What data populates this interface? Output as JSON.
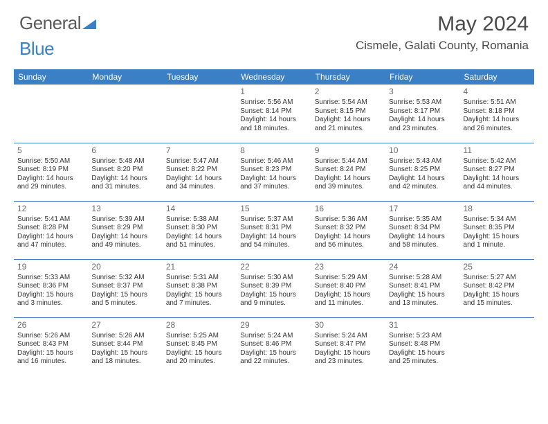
{
  "brand": {
    "part1": "General",
    "part2": "Blue"
  },
  "title": "May 2024",
  "location": "Cismele, Galati County, Romania",
  "colors": {
    "accent": "#3b7fc4",
    "text": "#4a4a4a",
    "cell_text": "#333333",
    "bg": "#ffffff"
  },
  "weekdays": [
    "Sunday",
    "Monday",
    "Tuesday",
    "Wednesday",
    "Thursday",
    "Friday",
    "Saturday"
  ],
  "layout": {
    "first_weekday_index": 3,
    "days_in_month": 31
  },
  "days": [
    {
      "n": 1,
      "sunrise": "5:56 AM",
      "sunset": "8:14 PM",
      "daylight": "14 hours and 18 minutes."
    },
    {
      "n": 2,
      "sunrise": "5:54 AM",
      "sunset": "8:15 PM",
      "daylight": "14 hours and 21 minutes."
    },
    {
      "n": 3,
      "sunrise": "5:53 AM",
      "sunset": "8:17 PM",
      "daylight": "14 hours and 23 minutes."
    },
    {
      "n": 4,
      "sunrise": "5:51 AM",
      "sunset": "8:18 PM",
      "daylight": "14 hours and 26 minutes."
    },
    {
      "n": 5,
      "sunrise": "5:50 AM",
      "sunset": "8:19 PM",
      "daylight": "14 hours and 29 minutes."
    },
    {
      "n": 6,
      "sunrise": "5:48 AM",
      "sunset": "8:20 PM",
      "daylight": "14 hours and 31 minutes."
    },
    {
      "n": 7,
      "sunrise": "5:47 AM",
      "sunset": "8:22 PM",
      "daylight": "14 hours and 34 minutes."
    },
    {
      "n": 8,
      "sunrise": "5:46 AM",
      "sunset": "8:23 PM",
      "daylight": "14 hours and 37 minutes."
    },
    {
      "n": 9,
      "sunrise": "5:44 AM",
      "sunset": "8:24 PM",
      "daylight": "14 hours and 39 minutes."
    },
    {
      "n": 10,
      "sunrise": "5:43 AM",
      "sunset": "8:25 PM",
      "daylight": "14 hours and 42 minutes."
    },
    {
      "n": 11,
      "sunrise": "5:42 AM",
      "sunset": "8:27 PM",
      "daylight": "14 hours and 44 minutes."
    },
    {
      "n": 12,
      "sunrise": "5:41 AM",
      "sunset": "8:28 PM",
      "daylight": "14 hours and 47 minutes."
    },
    {
      "n": 13,
      "sunrise": "5:39 AM",
      "sunset": "8:29 PM",
      "daylight": "14 hours and 49 minutes."
    },
    {
      "n": 14,
      "sunrise": "5:38 AM",
      "sunset": "8:30 PM",
      "daylight": "14 hours and 51 minutes."
    },
    {
      "n": 15,
      "sunrise": "5:37 AM",
      "sunset": "8:31 PM",
      "daylight": "14 hours and 54 minutes."
    },
    {
      "n": 16,
      "sunrise": "5:36 AM",
      "sunset": "8:32 PM",
      "daylight": "14 hours and 56 minutes."
    },
    {
      "n": 17,
      "sunrise": "5:35 AM",
      "sunset": "8:34 PM",
      "daylight": "14 hours and 58 minutes."
    },
    {
      "n": 18,
      "sunrise": "5:34 AM",
      "sunset": "8:35 PM",
      "daylight": "15 hours and 1 minute."
    },
    {
      "n": 19,
      "sunrise": "5:33 AM",
      "sunset": "8:36 PM",
      "daylight": "15 hours and 3 minutes."
    },
    {
      "n": 20,
      "sunrise": "5:32 AM",
      "sunset": "8:37 PM",
      "daylight": "15 hours and 5 minutes."
    },
    {
      "n": 21,
      "sunrise": "5:31 AM",
      "sunset": "8:38 PM",
      "daylight": "15 hours and 7 minutes."
    },
    {
      "n": 22,
      "sunrise": "5:30 AM",
      "sunset": "8:39 PM",
      "daylight": "15 hours and 9 minutes."
    },
    {
      "n": 23,
      "sunrise": "5:29 AM",
      "sunset": "8:40 PM",
      "daylight": "15 hours and 11 minutes."
    },
    {
      "n": 24,
      "sunrise": "5:28 AM",
      "sunset": "8:41 PM",
      "daylight": "15 hours and 13 minutes."
    },
    {
      "n": 25,
      "sunrise": "5:27 AM",
      "sunset": "8:42 PM",
      "daylight": "15 hours and 15 minutes."
    },
    {
      "n": 26,
      "sunrise": "5:26 AM",
      "sunset": "8:43 PM",
      "daylight": "15 hours and 16 minutes."
    },
    {
      "n": 27,
      "sunrise": "5:26 AM",
      "sunset": "8:44 PM",
      "daylight": "15 hours and 18 minutes."
    },
    {
      "n": 28,
      "sunrise": "5:25 AM",
      "sunset": "8:45 PM",
      "daylight": "15 hours and 20 minutes."
    },
    {
      "n": 29,
      "sunrise": "5:24 AM",
      "sunset": "8:46 PM",
      "daylight": "15 hours and 22 minutes."
    },
    {
      "n": 30,
      "sunrise": "5:24 AM",
      "sunset": "8:47 PM",
      "daylight": "15 hours and 23 minutes."
    },
    {
      "n": 31,
      "sunrise": "5:23 AM",
      "sunset": "8:48 PM",
      "daylight": "15 hours and 25 minutes."
    }
  ],
  "labels": {
    "sunrise": "Sunrise:",
    "sunset": "Sunset:",
    "daylight": "Daylight:"
  }
}
